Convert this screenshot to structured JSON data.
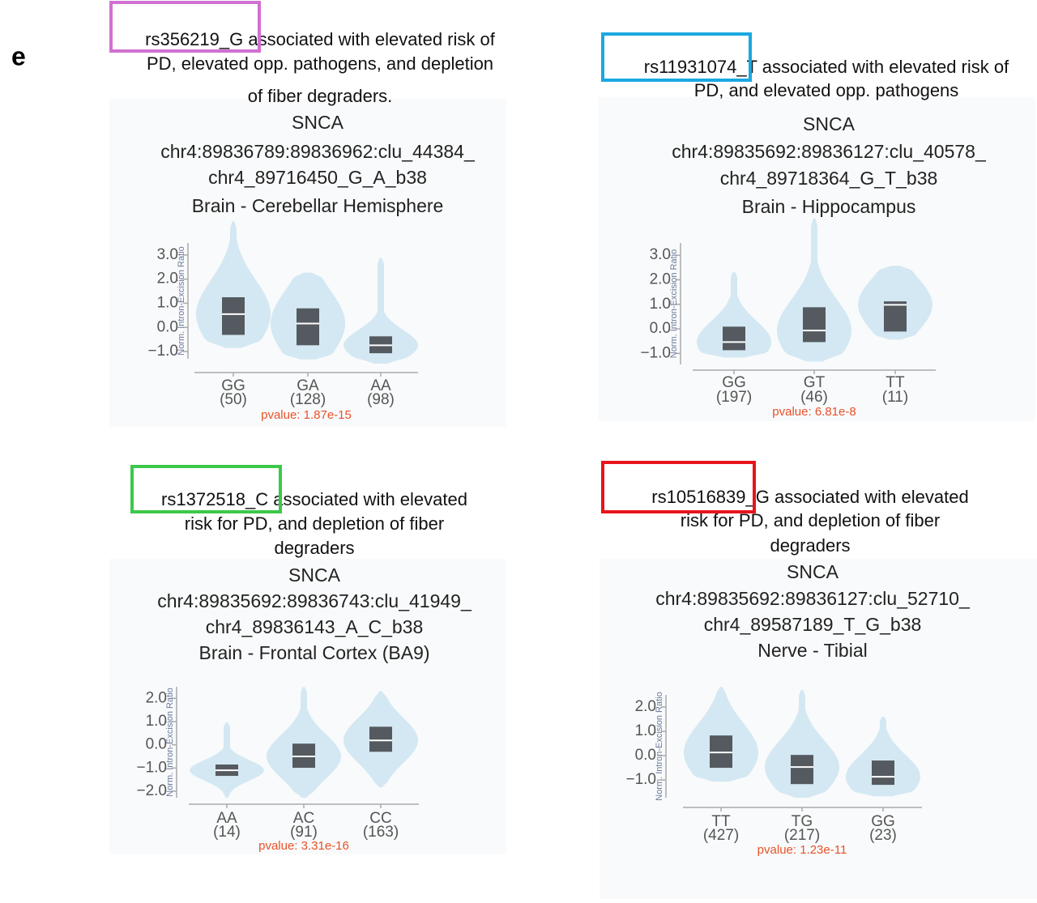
{
  "panel_label": "e",
  "chart_data": [
    {
      "type": "violin",
      "snp": "rs356219_G",
      "caption": [
        "associated with elevated risk of",
        "PD, elevated opp. pathogens, and depletion",
        "of fiber degraders."
      ],
      "title": [
        "SNCA",
        "chr4:89836789:89836962:clu_44384_",
        "chr4_89716450_G_A_b38",
        "Brain - Cerebellar Hemisphere"
      ],
      "y_label": "Norm. Intron-Excision Ratio",
      "categories": [
        "GG",
        "GA",
        "AA"
      ],
      "count_labels": [
        "(50)",
        "(128)",
        "(98)"
      ],
      "min": [
        -0.85,
        -1.33,
        -1.5
      ],
      "q1": [
        -0.31,
        -0.74,
        -1.07
      ],
      "median": [
        0.55,
        0.16,
        -0.74
      ],
      "q3": [
        1.25,
        0.79,
        -0.37
      ],
      "max": [
        4.39,
        2.27,
        2.87
      ],
      "ylim": [
        -1.3,
        3.5
      ],
      "yticks": [
        {
          "value": -1,
          "label": "−1.0"
        },
        {
          "value": 0,
          "label": "0.0"
        },
        {
          "value": 1,
          "label": "1.0"
        },
        {
          "value": 2,
          "label": "2.0"
        },
        {
          "value": 3,
          "label": "3.0"
        }
      ],
      "pvalue": "pvalue: 1.87e-15",
      "violin_color": "#d3e8f2",
      "box_color": "#555a60"
    },
    {
      "type": "violin",
      "snp": "rs11931074_T",
      "caption": [
        "associated with elevated risk of",
        "PD, and elevated opp. pathogens"
      ],
      "title": [
        "SNCA",
        "chr4:89835692:89836127:clu_40578_",
        "chr4_89718364_G_T_b38",
        "Brain - Hippocampus"
      ],
      "y_label": "Norm. Intron-Excision Ratio",
      "categories": [
        "GG",
        "GT",
        "TT"
      ],
      "count_labels": [
        "(197)",
        "(46)",
        "(11)"
      ],
      "min": [
        -1.17,
        -1.33,
        -0.44
      ],
      "q1": [
        -0.87,
        -0.54,
        -0.11
      ],
      "median": [
        -0.54,
        -0.07,
        0.98
      ],
      "q3": [
        0.09,
        0.88,
        1.12
      ],
      "max": [
        2.31,
        4.5,
        2.57
      ],
      "ylim": [
        -1.45,
        3.5
      ],
      "yticks": [
        {
          "value": -1,
          "label": "−1.0"
        },
        {
          "value": 0,
          "label": "0.0"
        },
        {
          "value": 1,
          "label": "1.0"
        },
        {
          "value": 2,
          "label": "2.0"
        },
        {
          "value": 3,
          "label": "3.0"
        }
      ],
      "pvalue": "pvalue: 6.81e-8",
      "violin_color": "#d3e8f2",
      "box_color": "#555a60"
    },
    {
      "type": "violin",
      "snp": "rs1372518_C",
      "caption": [
        "associated with elevated",
        "risk for PD, and depletion of  fiber",
        "degraders"
      ],
      "title": [
        "SNCA",
        "chr4:89835692:89836743:clu_41949_",
        "chr4_89836143_A_C_b38",
        "Brain - Frontal Cortex (BA9)"
      ],
      "y_label": "Norm. Intron-Excision Ratio",
      "categories": [
        "AA",
        "AC",
        "CC"
      ],
      "count_labels": [
        "(14)",
        "(91)",
        "(163)"
      ],
      "min": [
        -2.28,
        -2.28,
        -1.83
      ],
      "q1": [
        -1.34,
        -0.99,
        -0.3
      ],
      "median": [
        -1.1,
        -0.5,
        0.19
      ],
      "q3": [
        -0.85,
        0.05,
        0.78
      ],
      "max": [
        0.96,
        2.49,
        2.31
      ],
      "ylim": [
        -2.28,
        2.5
      ],
      "yticks": [
        {
          "value": -2,
          "label": "−2.0"
        },
        {
          "value": -1,
          "label": "−1.0"
        },
        {
          "value": 0,
          "label": "0.0"
        },
        {
          "value": 1,
          "label": "1.0"
        },
        {
          "value": 2,
          "label": "2.0"
        }
      ],
      "pvalue": "pvalue: 3.31e-16",
      "violin_color": "#d3e8f2",
      "box_color": "#555a60"
    },
    {
      "type": "violin",
      "snp": "rs10516839_G",
      "caption": [
        "associated with elevated",
        "risk for PD, and depletion of fiber",
        "degraders"
      ],
      "title": [
        "SNCA",
        "chr4:89835692:89836127:clu_52710_",
        "chr4_89587189_T_G_b38",
        "Nerve - Tibial"
      ],
      "y_label": "Norm. Intron-Excision Ratio",
      "categories": [
        "TT",
        "TG",
        "GG"
      ],
      "count_labels": [
        "(427)",
        "(217)",
        "(23)"
      ],
      "min": [
        -1.07,
        -1.73,
        -1.67
      ],
      "q1": [
        -0.5,
        -1.17,
        -1.2
      ],
      "median": [
        0.13,
        -0.47,
        -0.87
      ],
      "q3": [
        0.83,
        0.03,
        -0.2
      ],
      "max": [
        2.83,
        2.7,
        1.6
      ],
      "ylim": [
        -1.73,
        2.5
      ],
      "yticks": [
        {
          "value": -1,
          "label": "−1.0"
        },
        {
          "value": 0,
          "label": "0.0"
        },
        {
          "value": 1,
          "label": "1.0"
        },
        {
          "value": 2,
          "label": "2.0"
        }
      ],
      "pvalue": "pvalue: 1.23e-11",
      "violin_color": "#d3e8f2",
      "box_color": "#555a60"
    }
  ]
}
